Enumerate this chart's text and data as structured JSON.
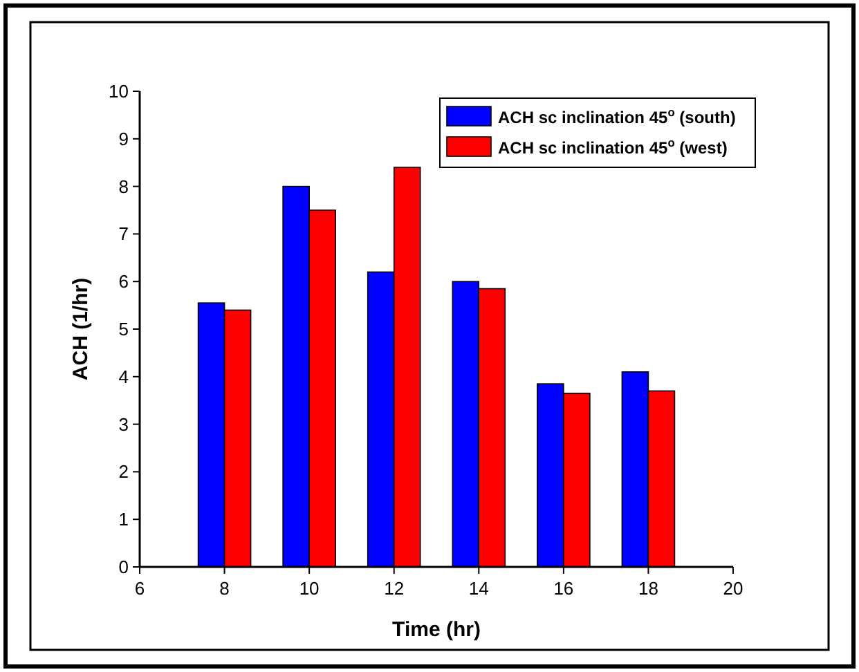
{
  "chart_data": {
    "type": "bar",
    "xlabel": "Time (hr)",
    "ylabel": "ACH (1/hr)",
    "x": [
      8,
      10,
      12,
      14,
      16,
      18
    ],
    "xlim": [
      6,
      20
    ],
    "xticks": [
      6,
      8,
      10,
      12,
      14,
      16,
      18,
      20
    ],
    "ylim": [
      0,
      10
    ],
    "yticks": [
      0,
      1,
      2,
      3,
      4,
      5,
      6,
      7,
      8,
      9,
      10
    ],
    "legend": "top right",
    "series": [
      {
        "name": "ACH sc inclination 45$^{o}$ (south)",
        "color": "#0000ff",
        "values": [
          5.55,
          8.0,
          6.2,
          6.0,
          3.85,
          4.1
        ]
      },
      {
        "name": "ACH sc inclination 45$^{o}$ (west)",
        "color": "#ff0000",
        "values": [
          5.4,
          7.5,
          8.4,
          5.85,
          3.65,
          3.7
        ]
      }
    ]
  }
}
